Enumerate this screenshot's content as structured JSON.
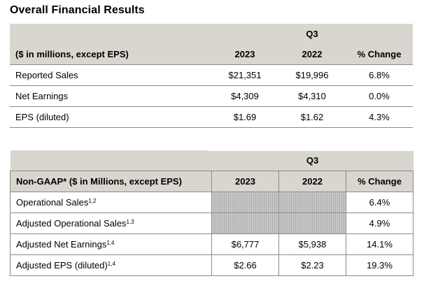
{
  "title": "Overall Financial Results",
  "table1": {
    "period": "Q3",
    "header_label": "($ in millions, except EPS)",
    "col_2023": "2023",
    "col_2022": "2022",
    "col_change": "% Change",
    "rows": [
      {
        "label": "Reported Sales",
        "v2023": "$21,351",
        "v2022": "$19,996",
        "change": "6.8%"
      },
      {
        "label": "Net Earnings",
        "v2023": "$4,309",
        "v2022": "$4,310",
        "change": "0.0%"
      },
      {
        "label": "EPS (diluted)",
        "v2023": "$1.69",
        "v2022": "$1.62",
        "change": "4.3%"
      }
    ]
  },
  "table2": {
    "period": "Q3",
    "header_label": "Non-GAAP* ($ in Millions, except EPS)",
    "col_2023": "2023",
    "col_2022": "2022",
    "col_change": "% Change",
    "rows": [
      {
        "label": "Operational Sales",
        "sup": "1,2",
        "v2023": "",
        "v2022": "",
        "change": "6.4%"
      },
      {
        "label": "Adjusted Operational Sales",
        "sup": "1,3",
        "v2023": "",
        "v2022": "",
        "change": "4.9%"
      },
      {
        "label": "Adjusted Net Earnings",
        "sup": "1,4",
        "v2023": "$6,777",
        "v2022": "$5,938",
        "change": "14.1%"
      },
      {
        "label": "Adjusted EPS (diluted)",
        "sup": "1,4",
        "v2023": "$2.66",
        "v2022": "$2.23",
        "change": "19.3%"
      }
    ]
  }
}
